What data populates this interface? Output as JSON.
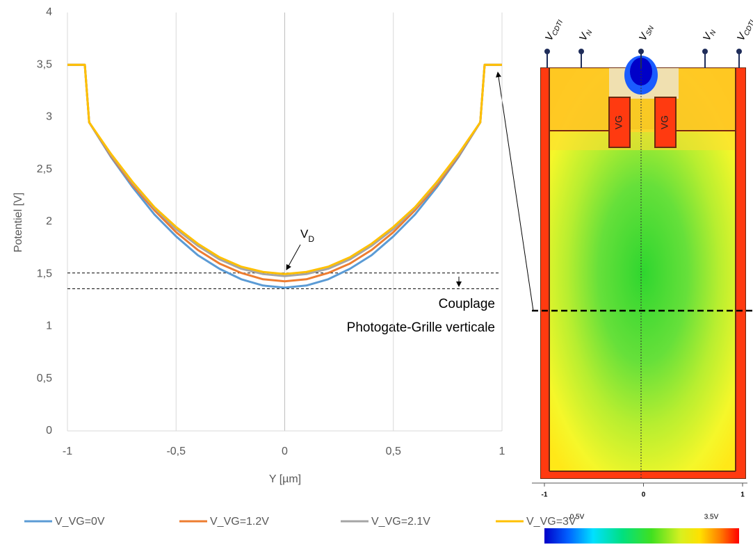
{
  "chart_data": {
    "type": "line",
    "x": [
      -1,
      -0.92,
      -0.9,
      -0.8,
      -0.7,
      -0.6,
      -0.5,
      -0.4,
      -0.3,
      -0.2,
      -0.1,
      0,
      0.1,
      0.2,
      0.3,
      0.4,
      0.5,
      0.6,
      0.7,
      0.8,
      0.9,
      0.92,
      1
    ],
    "series": [
      {
        "name": "V_VG=0V",
        "color": "#5b9bd5",
        "values": [
          3.5,
          3.5,
          2.95,
          2.62,
          2.33,
          2.07,
          1.86,
          1.68,
          1.55,
          1.45,
          1.39,
          1.37,
          1.39,
          1.45,
          1.55,
          1.68,
          1.86,
          2.07,
          2.33,
          2.62,
          2.95,
          3.5,
          3.5
        ]
      },
      {
        "name": "V_VG=1.2V",
        "color": "#ed7d31",
        "values": [
          3.5,
          3.5,
          2.95,
          2.63,
          2.35,
          2.11,
          1.9,
          1.73,
          1.6,
          1.51,
          1.45,
          1.43,
          1.45,
          1.51,
          1.6,
          1.73,
          1.9,
          2.11,
          2.35,
          2.63,
          2.95,
          3.5,
          3.5
        ]
      },
      {
        "name": "V_VG=2.1V",
        "color": "#a5a5a5",
        "values": [
          3.5,
          3.5,
          2.95,
          2.64,
          2.37,
          2.13,
          1.93,
          1.77,
          1.64,
          1.55,
          1.5,
          1.48,
          1.5,
          1.55,
          1.64,
          1.77,
          1.93,
          2.13,
          2.37,
          2.64,
          2.95,
          3.5,
          3.5
        ]
      },
      {
        "name": "V_VG=3V",
        "color": "#ffc000",
        "values": [
          3.5,
          3.5,
          2.95,
          2.65,
          2.38,
          2.14,
          1.95,
          1.79,
          1.66,
          1.57,
          1.52,
          1.5,
          1.52,
          1.57,
          1.66,
          1.79,
          1.95,
          2.14,
          2.38,
          2.65,
          2.95,
          3.5,
          3.5
        ]
      }
    ],
    "xlabel": "Y [µm]",
    "ylabel": "Potentiel [V]",
    "xlim": [
      -1,
      1
    ],
    "ylim": [
      0,
      4
    ],
    "xticks": [
      -1,
      {
        "value": -0.5,
        "label": "-0,5"
      },
      0,
      {
        "value": 0.5,
        "label": "0,5"
      },
      1
    ],
    "yticks": [
      0,
      {
        "value": 0.5,
        "label": "0,5"
      },
      1,
      {
        "value": 1.5,
        "label": "1,5"
      },
      2,
      {
        "value": 2.5,
        "label": "2,5"
      },
      3,
      {
        "value": 3.5,
        "label": "3,5"
      },
      4
    ],
    "grid": "x",
    "legend": "bottom",
    "reference_lines": [
      1.51,
      1.36
    ],
    "annotations": {
      "vd": {
        "text": "V",
        "subscript": "D"
      },
      "coupling": [
        "Couplage",
        "Photogate-Grille verticale"
      ]
    }
  },
  "device_figure": {
    "terminals": [
      {
        "text": "V",
        "subscript": "CDTI"
      },
      {
        "text": "V",
        "subscript": "N"
      },
      {
        "text": "V",
        "subscript": "SN"
      },
      {
        "text": "V",
        "subscript": "N"
      },
      {
        "text": "V",
        "subscript": "CDTI"
      }
    ],
    "gate_labels": [
      "VG",
      "VG"
    ],
    "axis_ticks": [
      -1,
      0,
      1
    ],
    "colorbar": {
      "min_label": "0.5V",
      "max_label": "3.5V"
    }
  }
}
